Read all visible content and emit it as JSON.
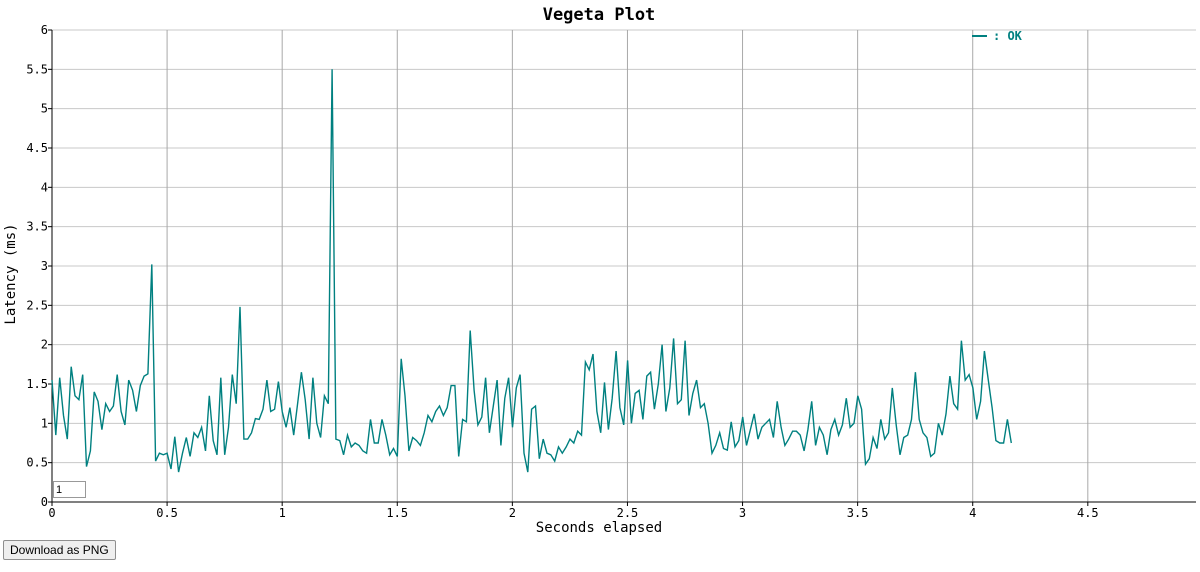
{
  "chart_data": {
    "type": "line",
    "title": "Vegeta Plot",
    "xlabel": "Seconds elapsed",
    "ylabel": "Latency (ms)",
    "xlim": [
      0,
      4.97
    ],
    "ylim": [
      0,
      6
    ],
    "xticks": [
      "0",
      "0.5",
      "1",
      "1.5",
      "2",
      "2.5",
      "3",
      "3.5",
      "4",
      "4.5"
    ],
    "yticks": [
      "0",
      "0.5",
      "1",
      "1.5",
      "2",
      "2.5",
      "3",
      "3.5",
      "4",
      "4.5",
      "5",
      "5.5",
      "6"
    ],
    "grid": true,
    "legend": "top-right",
    "series": [
      {
        "name": "OK",
        "legend_text": ": OK",
        "color": "#008080",
        "x_start": 0,
        "x_step": 0.01667,
        "y": [
          1.55,
          0.85,
          1.58,
          1.1,
          0.8,
          1.72,
          1.35,
          1.3,
          1.62,
          0.45,
          0.65,
          1.4,
          1.28,
          0.92,
          1.25,
          1.15,
          1.22,
          1.62,
          1.15,
          0.98,
          1.55,
          1.42,
          1.15,
          1.48,
          1.6,
          1.63,
          3.02,
          0.52,
          0.62,
          0.6,
          0.62,
          0.42,
          0.83,
          0.38,
          0.62,
          0.82,
          0.58,
          0.88,
          0.82,
          0.95,
          0.65,
          1.35,
          0.78,
          0.6,
          1.58,
          0.6,
          0.95,
          1.62,
          1.25,
          2.48,
          0.8,
          0.8,
          0.88,
          1.06,
          1.05,
          1.18,
          1.55,
          1.15,
          1.18,
          1.53,
          1.15,
          0.95,
          1.2,
          0.85,
          1.25,
          1.65,
          1.3,
          0.8,
          1.58,
          1.0,
          0.82,
          1.35,
          1.25,
          5.5,
          0.8,
          0.78,
          0.6,
          0.85,
          0.7,
          0.75,
          0.72,
          0.65,
          0.62,
          1.05,
          0.75,
          0.75,
          1.05,
          0.85,
          0.6,
          0.68,
          0.58,
          1.82,
          1.35,
          0.65,
          0.82,
          0.78,
          0.72,
          0.88,
          1.1,
          1.02,
          1.15,
          1.22,
          1.1,
          1.2,
          1.48,
          1.48,
          0.58,
          1.05,
          1.02,
          2.18,
          1.42,
          0.98,
          1.08,
          1.58,
          0.88,
          1.22,
          1.55,
          0.72,
          1.32,
          1.58,
          0.95,
          1.45,
          1.62,
          0.62,
          0.38,
          1.18,
          1.22,
          0.55,
          0.8,
          0.62,
          0.6,
          0.52,
          0.7,
          0.62,
          0.7,
          0.8,
          0.75,
          0.9,
          0.85,
          1.78,
          1.68,
          1.88,
          1.15,
          0.88,
          1.52,
          0.92,
          1.32,
          1.92,
          1.2,
          0.98,
          1.8,
          1.0,
          1.38,
          1.42,
          1.05,
          1.6,
          1.65,
          1.18,
          1.5,
          2.0,
          1.15,
          1.45,
          2.08,
          1.25,
          1.3,
          2.05,
          1.1,
          1.38,
          1.55,
          1.2,
          1.25,
          1.0,
          0.62,
          0.72,
          0.88,
          0.68,
          0.66,
          1.02,
          0.7,
          0.78,
          1.08,
          0.72,
          0.92,
          1.12,
          0.8,
          0.95,
          1.0,
          1.05,
          0.82,
          1.28,
          0.95,
          0.72,
          0.8,
          0.9,
          0.9,
          0.85,
          0.65,
          0.92,
          1.28,
          0.72,
          0.95,
          0.85,
          0.6,
          0.92,
          1.05,
          0.85,
          0.98,
          1.32,
          0.95,
          1.0,
          1.35,
          1.18,
          0.48,
          0.55,
          0.82,
          0.68,
          1.05,
          0.8,
          0.88,
          1.45,
          0.98,
          0.6,
          0.82,
          0.85,
          1.05,
          1.65,
          1.05,
          0.88,
          0.82,
          0.58,
          0.62,
          1.0,
          0.85,
          1.12,
          1.6,
          1.25,
          1.18,
          2.05,
          1.55,
          1.62,
          1.45,
          1.05,
          1.28,
          1.92,
          1.55,
          1.2,
          0.78,
          0.75,
          0.75,
          1.05,
          0.75
        ]
      }
    ]
  },
  "controls": {
    "roll_value": "1",
    "download_label": "Download as PNG"
  }
}
